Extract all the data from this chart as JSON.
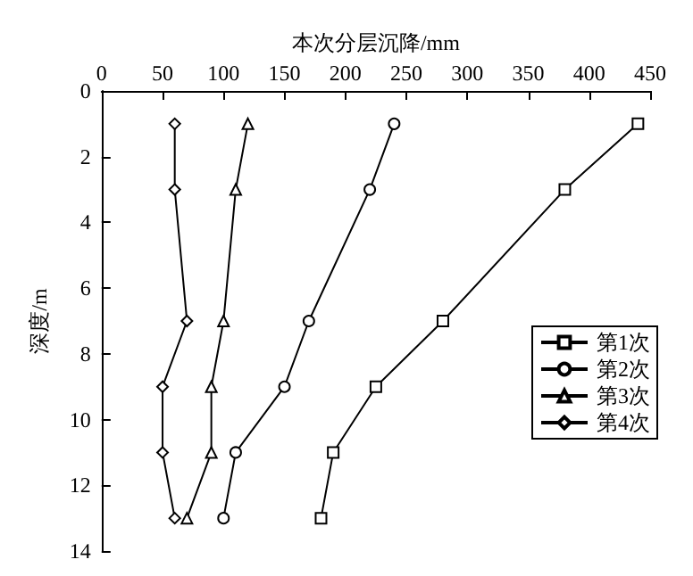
{
  "chart_data": {
    "type": "line",
    "xlabel": "本次分层沉降/mm",
    "ylabel": "深度/m",
    "xlim": [
      0,
      450
    ],
    "xticks": [
      0,
      50,
      100,
      150,
      200,
      250,
      300,
      350,
      400,
      450
    ],
    "ylim": [
      14,
      0
    ],
    "yticks": [
      0,
      2,
      4,
      6,
      8,
      10,
      12,
      14
    ],
    "grid": false,
    "legend": "right",
    "line_style": "solid",
    "series": [
      {
        "name": "第1次",
        "color": "#000000",
        "marker": "square",
        "x": [
          440,
          380,
          280,
          225,
          190,
          180
        ],
        "values": [
          1,
          3,
          7,
          9,
          11,
          13
        ]
      },
      {
        "name": "第2次",
        "color": "#000000",
        "marker": "circle",
        "x": [
          240,
          220,
          170,
          150,
          110,
          100
        ],
        "values": [
          1,
          3,
          7,
          9,
          11,
          13
        ]
      },
      {
        "name": "第3次",
        "color": "#000000",
        "marker": "triangle",
        "x": [
          120,
          110,
          100,
          90,
          90,
          70
        ],
        "values": [
          1,
          3,
          7,
          9,
          11,
          13
        ]
      },
      {
        "name": "第4次",
        "color": "#000000",
        "marker": "diamond",
        "x": [
          60,
          60,
          70,
          50,
          50,
          60
        ],
        "values": [
          1,
          3,
          7,
          9,
          11,
          13
        ]
      }
    ]
  }
}
